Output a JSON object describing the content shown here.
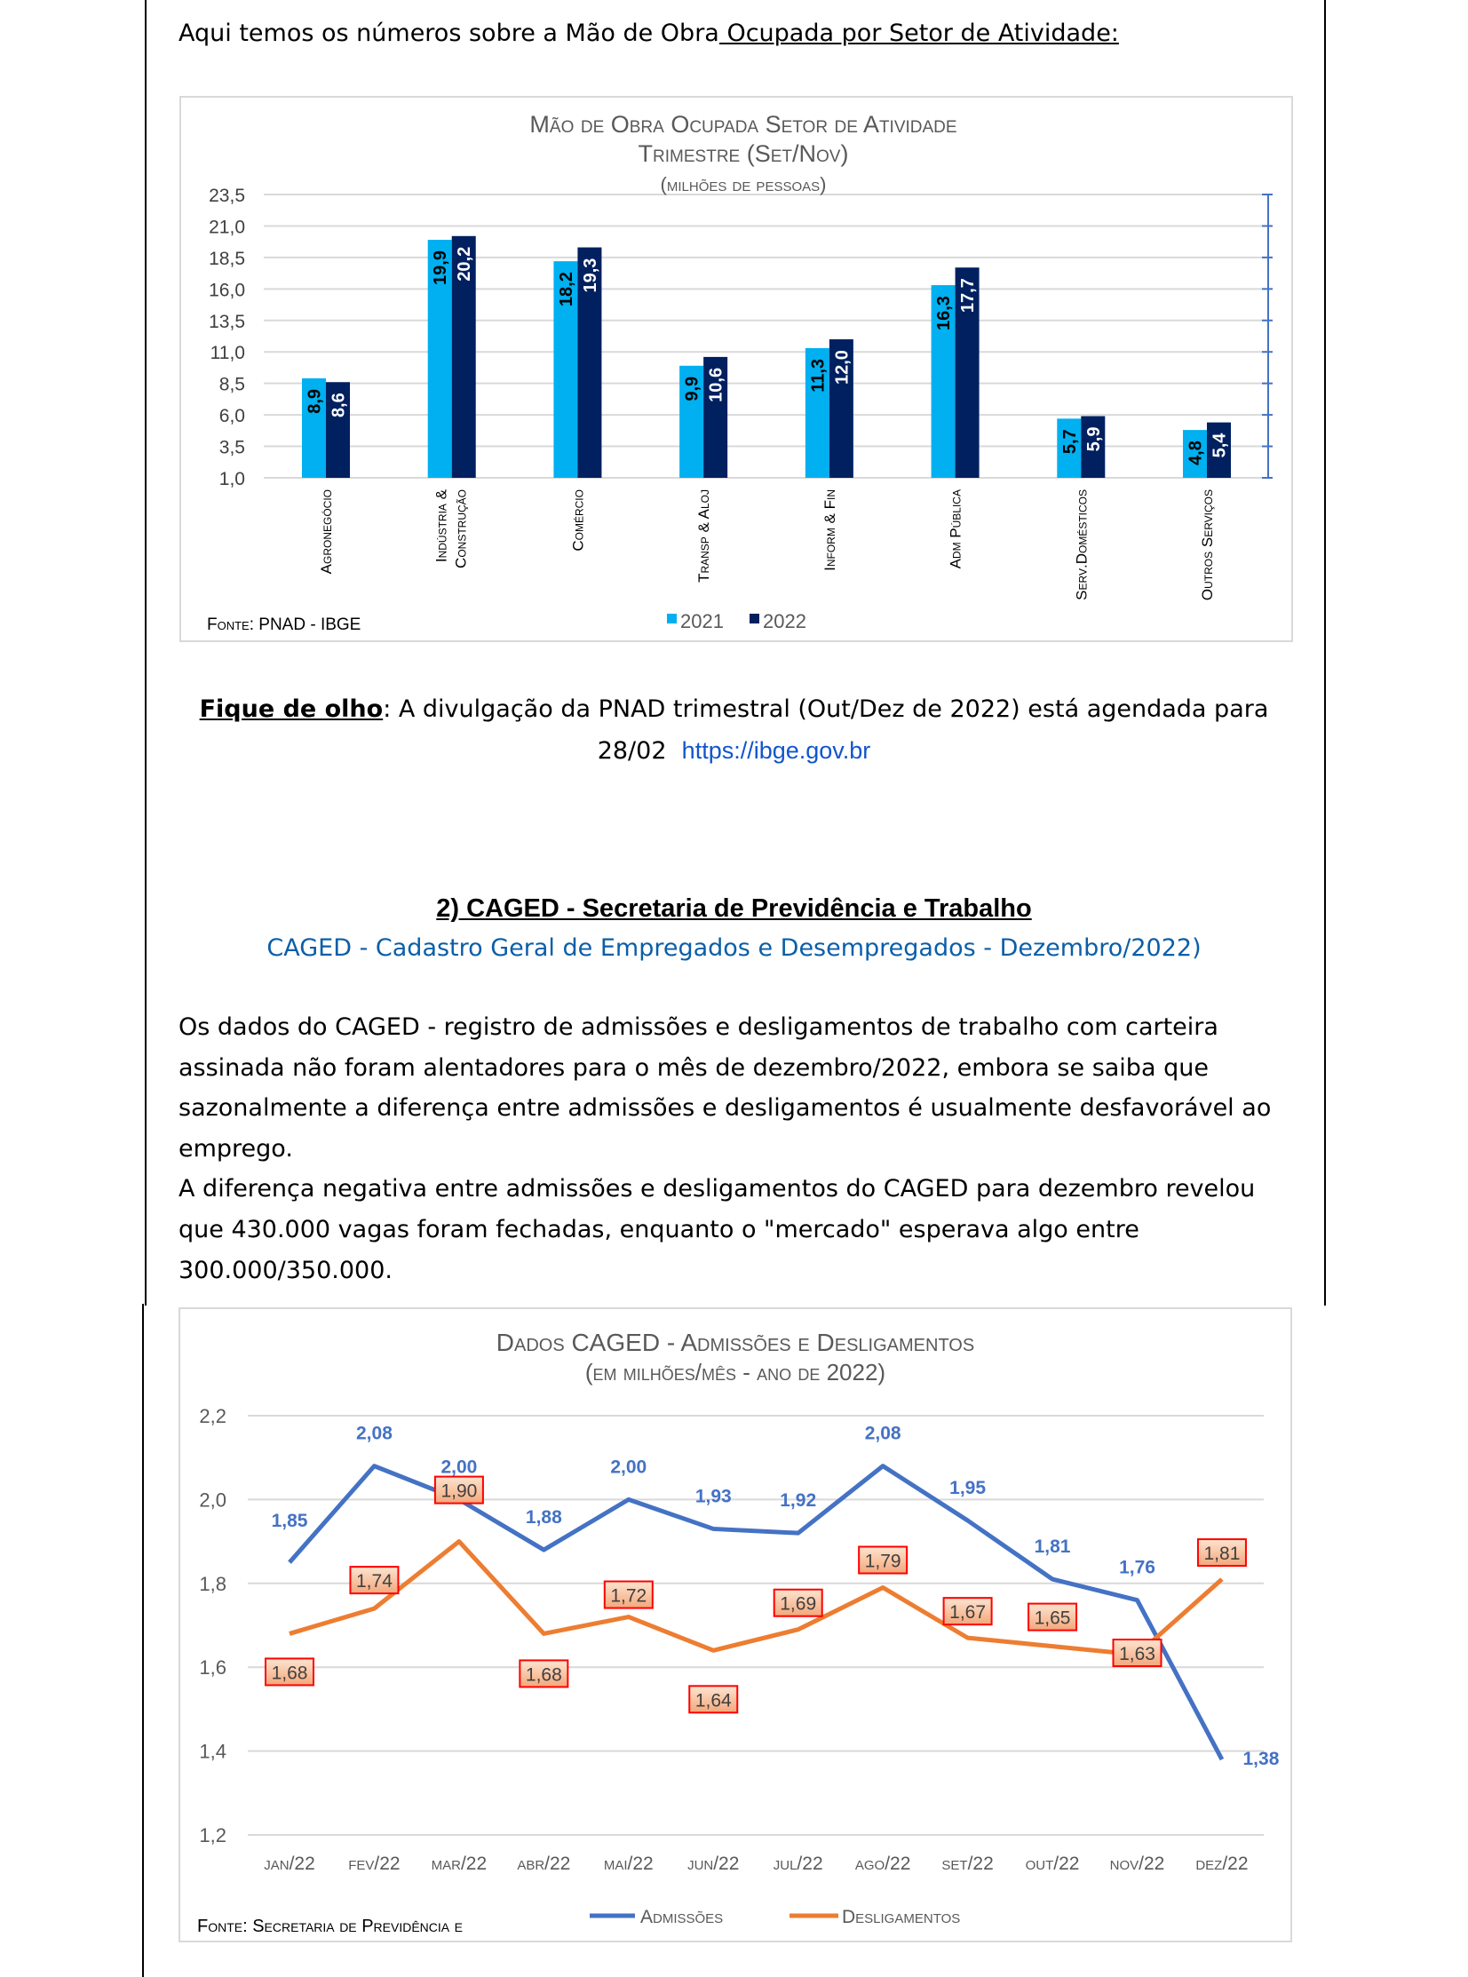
{
  "intro": {
    "prefix": "Aqui temos os números sobre a Mão de Obra",
    "link": " Ocupada por Setor de Atividade:"
  },
  "chart1": {
    "title_lines": [
      "Mão de Obra Ocupada Setor de Atividade",
      "Trimestre (Set/Nov)",
      "(milhões de pessoas)"
    ],
    "source": "Fonte: PNAD - IBGE"
  },
  "note": {
    "label": "Fique de olho",
    "text": ": A divulgação da PNAD trimestral (Out/Dez de 2022) está agendada para",
    "date": "28/02",
    "url": "https://ibge.gov.br"
  },
  "section2": {
    "heading": "2) CAGED - Secretaria de Previdência e Trabalho",
    "subtitle": "CAGED - Cadastro Geral de Empregados e Desempregados - Dezembro/2022)",
    "paragraph_lines": [
      "Os dados do CAGED - registro de admissões e desligamentos de trabalho com carteira",
      "assinada não foram alentadores para o mês de dezembro/2022, embora se saiba que",
      "sazonalmente a diferença entre admissões e desligamentos é usualmente desfavorável ao",
      "emprego.",
      "A diferença negativa entre admissões e desligamentos do CAGED para dezembro revelou",
      "que 430.000 vagas foram fechadas, enquanto o \"mercado\" esperava algo entre",
      "300.000/350.000."
    ]
  },
  "chart2": {
    "title_lines": [
      "Dados CAGED - Admissões e Desligamentos",
      "(em milhões/mês - ano de 2022)"
    ],
    "source": "Fonte: Secretaria de Previdência e"
  },
  "chart_data": [
    {
      "type": "bar",
      "title": "Mão de Obra Ocupada Setor de Atividade / Trimestre (Set/Nov) / (milhões de pessoas)",
      "categories": [
        "Agronegócio",
        "Indústria & Construção",
        "Comércio",
        "Transp & Aloj",
        "Inform & Fin",
        "Adm Pública",
        "Serv.Domésticos",
        "Outros Serviços"
      ],
      "series": [
        {
          "name": "2021",
          "color": "#00b0f0",
          "values": [
            8.9,
            19.9,
            18.2,
            9.9,
            11.3,
            16.3,
            5.7,
            4.8
          ],
          "labels": [
            "8,9",
            "19,9",
            "18,2",
            "9,9",
            "11,3",
            "16,3",
            "5,7",
            "4,8"
          ]
        },
        {
          "name": "2022",
          "color": "#002060",
          "values": [
            8.6,
            20.2,
            19.3,
            10.6,
            12.0,
            17.7,
            5.9,
            5.4
          ],
          "labels": [
            "8,6",
            "20,2",
            "19,3",
            "10,6",
            "12,0",
            "17,7",
            "5,9",
            "5,4"
          ]
        }
      ],
      "ylim": [
        1.0,
        23.5
      ],
      "yticks": [
        "1,0",
        "3,5",
        "6,0",
        "8,5",
        "11,0",
        "13,5",
        "16,0",
        "18,5",
        "21,0",
        "23,5"
      ],
      "grid": true,
      "legend": "bottom"
    },
    {
      "type": "line",
      "title": "Dados CAGED - Admissões e Desligamentos (em milhões/mês - ano de 2022)",
      "categories": [
        "jan/22",
        "fev/22",
        "mar/22",
        "abr/22",
        "mai/22",
        "jun/22",
        "jul/22",
        "ago/22",
        "set/22",
        "out/22",
        "nov/22",
        "dez/22"
      ],
      "series": [
        {
          "name": "Admissões",
          "color": "#4472c4",
          "values": [
            1.85,
            2.08,
            2.0,
            1.88,
            2.0,
            1.93,
            1.92,
            2.08,
            1.95,
            1.81,
            1.76,
            1.38
          ],
          "labels": [
            "1,85",
            "2,08",
            "2,00",
            "1,88",
            "2,00",
            "1,93",
            "1,92",
            "2,08",
            "1,95",
            "1,81",
            "1,76",
            "1,38"
          ]
        },
        {
          "name": "Desligamentos",
          "color": "#ed7d31",
          "values": [
            1.68,
            1.74,
            1.9,
            1.68,
            1.72,
            1.64,
            1.69,
            1.79,
            1.67,
            1.65,
            1.63,
            1.81
          ],
          "labels": [
            "1,68",
            "1,74",
            "1,90",
            "1,68",
            "1,72",
            "1,64",
            "1,69",
            "1,79",
            "1,67",
            "1,65",
            "1,63",
            "1,81"
          ]
        }
      ],
      "ylim": [
        1.2,
        2.2
      ],
      "yticks": [
        "1,2",
        "1,4",
        "1,6",
        "1,8",
        "2,0",
        "2,2"
      ],
      "grid": true,
      "legend": "bottom"
    }
  ]
}
